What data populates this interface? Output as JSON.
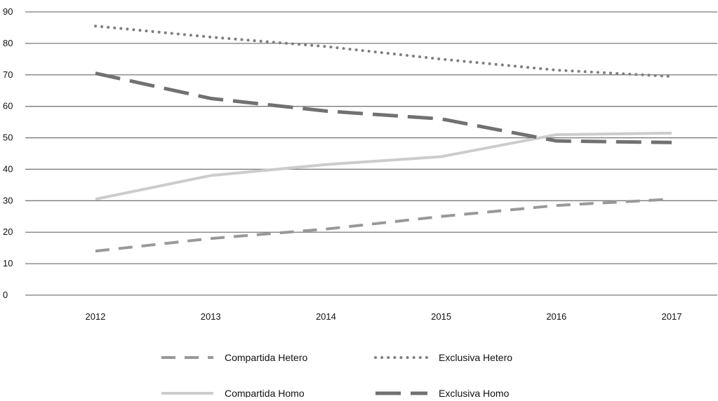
{
  "chart_data": {
    "type": "line",
    "title": "",
    "xlabel": "",
    "ylabel": "",
    "categories": [
      "2012",
      "2013",
      "2014",
      "2015",
      "2016",
      "2017"
    ],
    "ylim": [
      0,
      90
    ],
    "yticks": [
      0,
      10,
      20,
      30,
      40,
      50,
      60,
      70,
      80,
      90
    ],
    "grid": "horizontal",
    "legend_position": "bottom",
    "series": [
      {
        "name": "Compartida Hetero",
        "values": [
          14,
          18,
          21,
          25,
          28.5,
          30.5
        ],
        "color": "#999999",
        "style": "dashed"
      },
      {
        "name": "Exclusiva Hetero",
        "values": [
          85.5,
          82,
          79,
          75,
          71.5,
          69.5
        ],
        "color": "#7f7f7f",
        "style": "dotted"
      },
      {
        "name": "Compartida Homo",
        "values": [
          30.5,
          38,
          41.5,
          44,
          51,
          51.5
        ],
        "color": "#cccccc",
        "style": "solid"
      },
      {
        "name": "Exclusiva Homo",
        "values": [
          70.5,
          62.5,
          58.5,
          56,
          49,
          48.5
        ],
        "color": "#717171",
        "style": "long-dash"
      }
    ]
  }
}
